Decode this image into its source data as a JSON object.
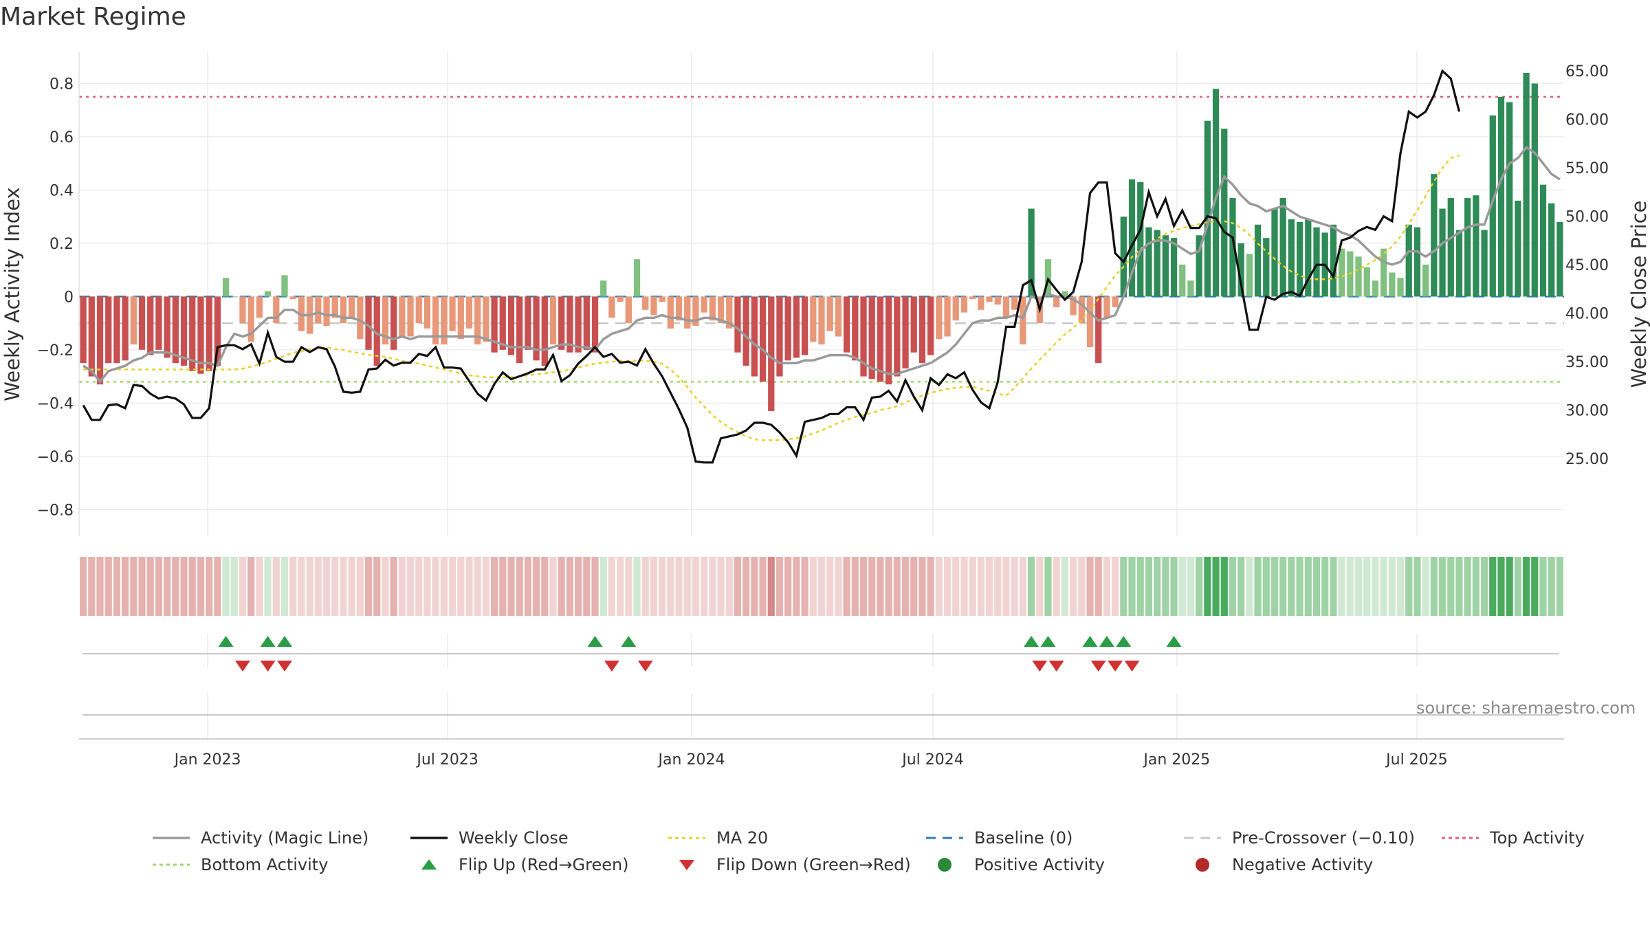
{
  "title": "Market Regime",
  "source": "source: sharemaestro.com",
  "chart_data": {
    "type": "bar",
    "x_start": "2022-09-30",
    "x_step": "1 week",
    "xlim": [
      "2022-09-26",
      "2025-10-20"
    ],
    "x_ticks": [
      "Jan 2023",
      "Jul 2023",
      "Jan 2024",
      "Jul 2024",
      "Jan 2025",
      "Jul 2025"
    ],
    "ylabel_left": "Weekly Activity Index",
    "ylabel_right": "Weekly Close Price",
    "ylim_left": [
      -0.9,
      0.92
    ],
    "ylim_right": [
      17.0,
      67.0
    ],
    "y_ticks_left": [
      "0.8",
      "0.6",
      "0.4",
      "0.2",
      "0",
      "−0.2",
      "−0.4",
      "−0.6",
      "−0.8"
    ],
    "y_ticks_right": [
      "65.00",
      "60.00",
      "55.00",
      "50.00",
      "45.00",
      "40.00",
      "35.00",
      "30.00",
      "25.00"
    ],
    "grid": true,
    "reference_lines": {
      "baseline": 0,
      "pre_crossover": -0.1,
      "top_activity": 0.75,
      "bottom_activity": -0.32
    },
    "activity_bars": [
      -0.25,
      -0.3,
      -0.33,
      -0.25,
      -0.25,
      -0.24,
      -0.18,
      -0.2,
      -0.22,
      -0.2,
      -0.23,
      -0.25,
      -0.26,
      -0.28,
      -0.29,
      -0.28,
      -0.26,
      0.07,
      0.0,
      -0.1,
      -0.17,
      -0.08,
      0.02,
      -0.1,
      0.08,
      -0.01,
      -0.13,
      -0.14,
      -0.1,
      -0.11,
      -0.08,
      -0.1,
      -0.08,
      -0.16,
      -0.2,
      -0.26,
      -0.18,
      -0.2,
      -0.15,
      -0.15,
      -0.1,
      -0.12,
      -0.18,
      -0.18,
      -0.13,
      -0.16,
      -0.12,
      -0.18,
      -0.17,
      -0.21,
      -0.2,
      -0.22,
      -0.25,
      -0.2,
      -0.24,
      -0.26,
      -0.18,
      -0.2,
      -0.21,
      -0.21,
      -0.2,
      -0.21,
      0.06,
      -0.08,
      -0.02,
      -0.1,
      0.14,
      -0.05,
      -0.07,
      -0.02,
      -0.12,
      -0.09,
      -0.12,
      -0.11,
      -0.06,
      -0.09,
      -0.1,
      -0.12,
      -0.21,
      -0.26,
      -0.3,
      -0.32,
      -0.43,
      -0.3,
      -0.24,
      -0.23,
      -0.22,
      -0.17,
      -0.18,
      -0.13,
      -0.15,
      -0.21,
      -0.24,
      -0.3,
      -0.31,
      -0.32,
      -0.33,
      -0.3,
      -0.27,
      -0.21,
      -0.25,
      -0.22,
      -0.16,
      -0.15,
      -0.09,
      -0.06,
      -0.01,
      -0.05,
      -0.02,
      -0.03,
      -0.08,
      -0.05,
      -0.18,
      0.33,
      -0.1,
      0.14,
      -0.04,
      0.02,
      -0.07,
      -0.1,
      -0.19,
      -0.25,
      -0.08,
      -0.04,
      0.3,
      0.44,
      0.43,
      0.26,
      0.25,
      0.23,
      0.22,
      0.12,
      0.06,
      0.23,
      0.66,
      0.78,
      0.63,
      0.37,
      0.2,
      0.16,
      0.27,
      0.22,
      0.33,
      0.37,
      0.29,
      0.28,
      0.29,
      0.26,
      0.24,
      0.27,
      0.18,
      0.17,
      0.15,
      0.11,
      0.06,
      0.18,
      0.09,
      0.07,
      0.27,
      0.26,
      0.12,
      0.46,
      0.33,
      0.37,
      0.25,
      0.37,
      0.38,
      0.25,
      0.68,
      0.75,
      0.73,
      0.36,
      0.84,
      0.8,
      0.42,
      0.35,
      0.28
    ],
    "magic_line": [
      -0.26,
      -0.28,
      -0.32,
      -0.28,
      -0.27,
      -0.26,
      -0.24,
      -0.23,
      -0.21,
      -0.21,
      -0.21,
      -0.22,
      -0.23,
      -0.24,
      -0.25,
      -0.25,
      -0.26,
      -0.19,
      -0.14,
      -0.15,
      -0.14,
      -0.11,
      -0.08,
      -0.08,
      -0.05,
      -0.05,
      -0.07,
      -0.07,
      -0.06,
      -0.07,
      -0.07,
      -0.08,
      -0.08,
      -0.09,
      -0.11,
      -0.14,
      -0.15,
      -0.16,
      -0.15,
      -0.16,
      -0.15,
      -0.15,
      -0.15,
      -0.15,
      -0.15,
      -0.15,
      -0.15,
      -0.15,
      -0.16,
      -0.17,
      -0.18,
      -0.19,
      -0.19,
      -0.19,
      -0.2,
      -0.2,
      -0.19,
      -0.18,
      -0.18,
      -0.19,
      -0.19,
      -0.2,
      -0.16,
      -0.14,
      -0.13,
      -0.12,
      -0.09,
      -0.08,
      -0.08,
      -0.07,
      -0.08,
      -0.08,
      -0.09,
      -0.09,
      -0.08,
      -0.08,
      -0.09,
      -0.1,
      -0.12,
      -0.15,
      -0.18,
      -0.2,
      -0.23,
      -0.25,
      -0.25,
      -0.25,
      -0.24,
      -0.24,
      -0.23,
      -0.22,
      -0.22,
      -0.22,
      -0.23,
      -0.25,
      -0.27,
      -0.28,
      -0.29,
      -0.29,
      -0.28,
      -0.27,
      -0.26,
      -0.25,
      -0.23,
      -0.21,
      -0.18,
      -0.14,
      -0.1,
      -0.09,
      -0.09,
      -0.08,
      -0.08,
      -0.07,
      -0.08,
      0.0,
      -0.01,
      0.01,
      0.0,
      0.0,
      -0.01,
      -0.03,
      -0.06,
      -0.09,
      -0.08,
      -0.07,
      0.0,
      0.09,
      0.17,
      0.2,
      0.21,
      0.21,
      0.2,
      0.18,
      0.16,
      0.17,
      0.27,
      0.37,
      0.45,
      0.42,
      0.38,
      0.35,
      0.34,
      0.32,
      0.33,
      0.34,
      0.32,
      0.3,
      0.29,
      0.28,
      0.27,
      0.26,
      0.24,
      0.23,
      0.21,
      0.18,
      0.15,
      0.13,
      0.12,
      0.13,
      0.17,
      0.17,
      0.15,
      0.17,
      0.2,
      0.22,
      0.24,
      0.26,
      0.27,
      0.27,
      0.36,
      0.44,
      0.5,
      0.52,
      0.56,
      0.54,
      0.5,
      0.46,
      0.44
    ],
    "weekly_close": [
      30.5,
      29.0,
      29.0,
      30.5,
      30.6,
      30.2,
      32.6,
      32.5,
      31.7,
      31.2,
      31.4,
      31.2,
      30.6,
      29.2,
      29.2,
      30.2,
      36.5,
      36.7,
      36.7,
      36.3,
      36.8,
      34.8,
      38.0,
      35.5,
      35.0,
      35.0,
      36.5,
      36.0,
      36.5,
      36.3,
      34.5,
      31.9,
      31.8,
      31.9,
      34.2,
      34.3,
      35.2,
      34.6,
      34.9,
      34.9,
      35.8,
      35.6,
      36.5,
      34.4,
      34.4,
      34.3,
      33.0,
      31.7,
      31.0,
      32.7,
      33.9,
      33.2,
      33.5,
      33.8,
      34.2,
      34.2,
      35.7,
      33.0,
      33.6,
      34.8,
      35.6,
      36.5,
      35.5,
      35.8,
      34.9,
      35.0,
      34.6,
      36.3,
      34.8,
      33.5,
      31.8,
      30.1,
      28.2,
      24.7,
      24.6,
      24.6,
      27.1,
      27.3,
      27.5,
      27.9,
      28.7,
      28.7,
      28.5,
      27.7,
      26.7,
      25.3,
      28.8,
      29.0,
      29.2,
      29.6,
      29.6,
      30.3,
      30.3,
      29.0,
      31.3,
      31.4,
      32.0,
      30.9,
      33.1,
      31.4,
      30.0,
      33.3,
      32.6,
      33.7,
      33.3,
      33.9,
      32.1,
      30.8,
      30.2,
      32.9,
      38.6,
      38.6,
      42.9,
      43.4,
      40.4,
      43.5,
      42.4,
      41.4,
      42.2,
      45.3,
      52.4,
      53.5,
      53.5,
      46.2,
      45.3,
      47.0,
      48.6,
      52.5,
      50.0,
      51.8,
      49.0,
      50.6,
      48.8,
      48.8,
      50.0,
      49.8,
      48.4,
      47.8,
      43.0,
      38.3,
      38.3,
      41.7,
      41.4,
      42.0,
      42.2,
      41.8,
      43.5,
      45.0,
      45.0,
      43.8,
      47.5,
      47.8,
      48.5,
      48.9,
      48.6,
      50.0,
      49.5,
      56.5,
      60.8,
      60.2,
      60.8,
      62.5,
      65.0,
      64.2,
      60.8
    ],
    "ma20": [
      34.2,
      34.2,
      34.2,
      34.2,
      34.2,
      34.2,
      34.2,
      34.2,
      34.2,
      34.2,
      34.2,
      34.2,
      34.2,
      34.2,
      34.2,
      34.2,
      34.2,
      34.2,
      34.2,
      34.3,
      34.5,
      34.7,
      35.0,
      35.3,
      35.6,
      35.9,
      36.1,
      36.3,
      36.4,
      36.5,
      36.3,
      36.2,
      36.0,
      35.9,
      35.7,
      35.6,
      35.5,
      35.3,
      35.1,
      34.9,
      34.8,
      34.6,
      34.4,
      34.2,
      34.0,
      33.8,
      33.6,
      33.5,
      33.4,
      33.4,
      33.4,
      33.4,
      33.5,
      33.6,
      33.7,
      33.8,
      33.9,
      34.0,
      34.2,
      34.4,
      34.6,
      34.8,
      34.9,
      35.0,
      35.1,
      35.1,
      35.1,
      35.1,
      35.0,
      34.8,
      34.2,
      33.4,
      32.4,
      31.3,
      30.4,
      29.5,
      28.8,
      28.2,
      27.7,
      27.3,
      27.0,
      26.9,
      26.9,
      26.9,
      27.0,
      27.1,
      27.3,
      27.6,
      27.9,
      28.3,
      28.7,
      29.0,
      29.3,
      29.5,
      29.7,
      30.0,
      30.2,
      30.4,
      30.8,
      31.2,
      31.5,
      31.8,
      32.0,
      32.2,
      32.3,
      32.4,
      32.4,
      32.2,
      32.0,
      31.7,
      31.5,
      32.3,
      33.3,
      34.3,
      35.2,
      36.1,
      37.0,
      37.8,
      38.5,
      39.3,
      40.3,
      41.5,
      42.7,
      43.9,
      44.8,
      45.8,
      46.6,
      47.2,
      47.7,
      48.2,
      48.5,
      48.8,
      49.0,
      49.2,
      49.4,
      49.5,
      49.5,
      49.3,
      48.8,
      48.1,
      47.2,
      46.4,
      45.6,
      44.9,
      44.3,
      43.9,
      43.6,
      43.5,
      43.5,
      43.6,
      43.8,
      44.1,
      44.5,
      45.0,
      45.5,
      46.1,
      46.9,
      47.9,
      49.2,
      50.6,
      52.1,
      53.6,
      55.0,
      56.0,
      56.3
    ],
    "regime_strip_levels": [
      -2,
      -2,
      -2,
      -2,
      -2,
      -2,
      -2,
      -2,
      -2,
      -2,
      -2,
      -2,
      -2,
      -2,
      -2,
      -2,
      -2,
      1,
      1,
      -1,
      -2,
      -1,
      1,
      -1,
      1,
      -1,
      -1,
      -1,
      -1,
      -1,
      -1,
      -1,
      -1,
      -1,
      -2,
      -2,
      -1,
      -2,
      -1,
      -1,
      -1,
      -1,
      -1,
      -1,
      -1,
      -1,
      -1,
      -1,
      -1,
      -2,
      -2,
      -2,
      -2,
      -2,
      -2,
      -2,
      -1,
      -2,
      -2,
      -2,
      -2,
      -2,
      1,
      -1,
      -1,
      -1,
      1,
      -1,
      -1,
      -1,
      -1,
      -1,
      -1,
      -1,
      -1,
      -1,
      -1,
      -1,
      -2,
      -2,
      -2,
      -2,
      -3,
      -2,
      -2,
      -2,
      -2,
      -1,
      -1,
      -1,
      -1,
      -2,
      -2,
      -2,
      -2,
      -2,
      -2,
      -2,
      -2,
      -2,
      -2,
      -2,
      -1,
      -1,
      -1,
      -1,
      -1,
      -1,
      -1,
      -1,
      -1,
      -1,
      -1,
      2,
      -1,
      2,
      -1,
      1,
      -1,
      -1,
      -2,
      -2,
      -1,
      -1,
      2,
      2,
      2,
      2,
      2,
      2,
      2,
      1,
      1,
      2,
      3,
      3,
      3,
      2,
      2,
      1,
      2,
      2,
      2,
      2,
      2,
      2,
      2,
      2,
      2,
      2,
      1,
      1,
      1,
      1,
      1,
      1,
      1,
      1,
      2,
      2,
      1,
      2,
      2,
      2,
      2,
      2,
      2,
      2,
      3,
      3,
      3,
      2,
      3,
      3,
      2,
      2,
      2
    ],
    "flip_up_weeks": [
      17,
      22,
      24,
      61,
      65,
      113,
      115,
      120,
      122,
      124,
      130
    ],
    "flip_down_weeks": [
      19,
      22,
      24,
      63,
      67,
      114,
      116,
      121,
      123,
      125
    ],
    "legend": [
      {
        "label": "Activity (Magic Line)",
        "style": "solid",
        "color": "#9a9a9a"
      },
      {
        "label": "Weekly Close",
        "style": "solid",
        "color": "#111111"
      },
      {
        "label": "MA 20",
        "style": "dotted",
        "color": "#e6d22a"
      },
      {
        "label": "Baseline (0)",
        "style": "dashed",
        "color": "#2e7bb8"
      },
      {
        "label": "Pre-Crossover (−0.10)",
        "style": "dashed",
        "color": "#c8c8c8"
      },
      {
        "label": "Top Activity",
        "style": "dotted",
        "color": "#e0607a"
      },
      {
        "label": "Bottom Activity",
        "style": "dotted",
        "color": "#a6d76a"
      },
      {
        "label": "Flip Up (Red→Green)",
        "style": "triangle-up",
        "color": "#2a9d46"
      },
      {
        "label": "Flip Down (Green→Red)",
        "style": "triangle-down",
        "color": "#d03232"
      },
      {
        "label": "Positive Activity",
        "style": "circle",
        "color": "#2a8a3a"
      },
      {
        "label": "Negative Activity",
        "style": "circle",
        "color": "#b22a2a"
      }
    ],
    "colors": {
      "strong_positive": "#2e8b57",
      "weak_positive": "#80c080",
      "strong_negative": "#c85050",
      "weak_negative": "#e89878",
      "grid": "#ececec"
    }
  }
}
